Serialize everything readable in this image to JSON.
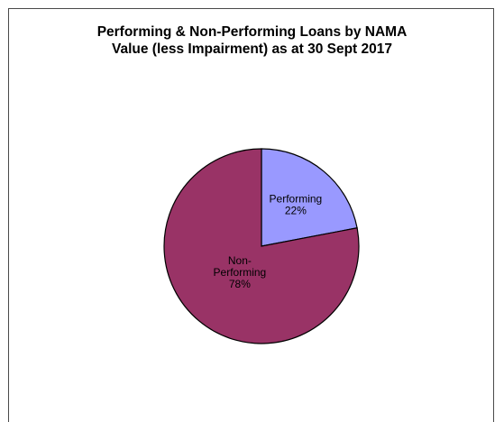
{
  "chart_data": {
    "type": "pie",
    "title_lines": [
      "Performing & Non-Performing Loans by NAMA",
      "Value (less Impairment) as at 30 Sept 2017"
    ],
    "slices": [
      {
        "name": "Performing",
        "label_lines": [
          "Performing"
        ],
        "percent_label": "22%",
        "value": 22,
        "color": "#9999ff"
      },
      {
        "name": "Non-Performing",
        "label_lines": [
          "Non-",
          "Performing"
        ],
        "percent_label": "78%",
        "value": 78,
        "color": "#993366"
      }
    ],
    "start_angle_deg": 0,
    "direction": "clockwise",
    "legend": "none",
    "slice_border_color": "#000000"
  }
}
